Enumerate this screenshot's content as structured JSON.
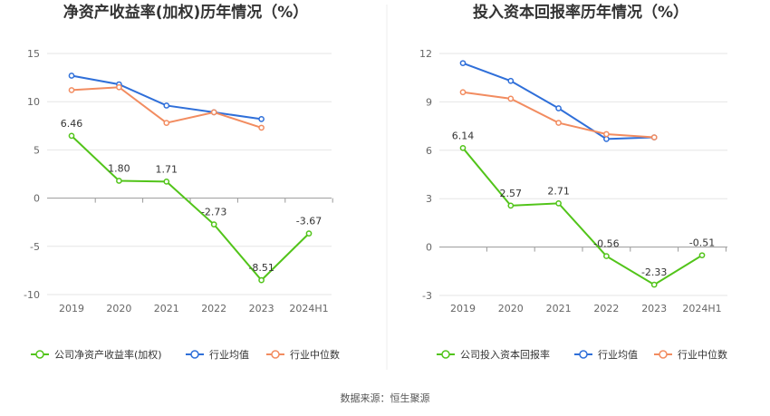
{
  "source_text": "数据来源：恒生聚源",
  "chart_data": [
    {
      "type": "line",
      "title": "净资产收益率(加权)历年情况（%）",
      "categories": [
        "2019",
        "2020",
        "2021",
        "2022",
        "2023",
        "2024H1"
      ],
      "ylim": [
        -10,
        15
      ],
      "yticks": [
        15,
        10,
        5,
        0,
        -5,
        -10
      ],
      "grid": true,
      "legend_position": "bottom",
      "series": [
        {
          "name": "公司净资产收益率(加权)",
          "color": "#52c41a",
          "values": [
            6.46,
            1.8,
            1.71,
            -2.73,
            -8.51,
            -3.67
          ],
          "show_labels": true
        },
        {
          "name": "行业均值",
          "color": "#2f6fd9",
          "values": [
            12.7,
            11.8,
            9.6,
            8.9,
            8.2,
            null
          ],
          "show_labels": false
        },
        {
          "name": "行业中位数",
          "color": "#f28c60",
          "values": [
            11.2,
            11.5,
            7.8,
            8.9,
            7.3,
            null
          ],
          "show_labels": false
        }
      ],
      "data_labels": [
        "6.46",
        "1.80",
        "1.71",
        "-2.73",
        "-8.51",
        "-3.67"
      ]
    },
    {
      "type": "line",
      "title": "投入资本回报率历年情况（%）",
      "categories": [
        "2019",
        "2020",
        "2021",
        "2022",
        "2023",
        "2024H1"
      ],
      "ylim": [
        -3,
        12
      ],
      "yticks": [
        12,
        9,
        6,
        3,
        0,
        -3
      ],
      "grid": true,
      "legend_position": "bottom",
      "series": [
        {
          "name": "公司投入资本回报率",
          "color": "#52c41a",
          "values": [
            6.14,
            2.57,
            2.71,
            -0.56,
            -2.33,
            -0.51
          ],
          "show_labels": true
        },
        {
          "name": "行业均值",
          "color": "#2f6fd9",
          "values": [
            11.4,
            10.3,
            8.6,
            6.7,
            6.8,
            null
          ],
          "show_labels": false
        },
        {
          "name": "行业中位数",
          "color": "#f28c60",
          "values": [
            9.6,
            9.2,
            7.7,
            7.0,
            6.8,
            null
          ],
          "show_labels": false
        }
      ],
      "data_labels": [
        "6.14",
        "2.57",
        "2.71",
        "-0.56",
        "-2.33",
        "-0.51"
      ]
    }
  ]
}
